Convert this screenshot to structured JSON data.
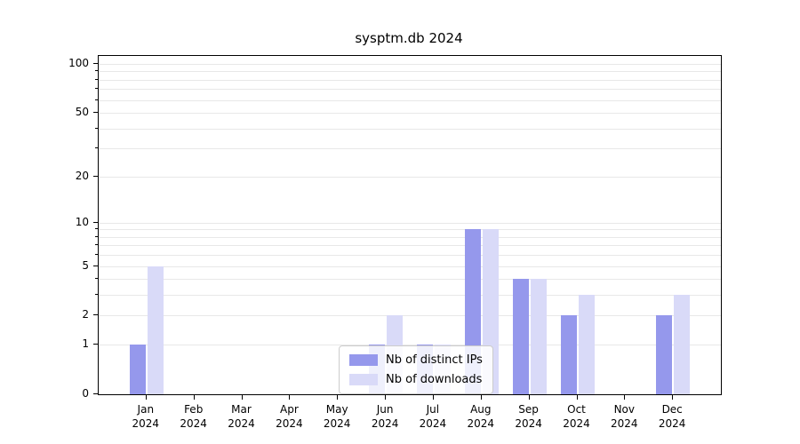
{
  "title": "sysptm.db 2024",
  "chart_data": {
    "type": "bar",
    "title": "sysptm.db 2024",
    "categories": [
      "Jan",
      "Feb",
      "Mar",
      "Apr",
      "May",
      "Jun",
      "Jul",
      "Aug",
      "Sep",
      "Oct",
      "Nov",
      "Dec"
    ],
    "year": "2024",
    "series": [
      {
        "name": "Nb of distinct IPs",
        "color": "#9598ec",
        "values": [
          1,
          0,
          0,
          0,
          0,
          1,
          1,
          9,
          4,
          2,
          0,
          2
        ]
      },
      {
        "name": "Nb of downloads",
        "color": "#d9daf8",
        "values": [
          5,
          0,
          0,
          0,
          0,
          2,
          1,
          9,
          4,
          3,
          0,
          3
        ]
      }
    ],
    "y_ticks": [
      0,
      1,
      2,
      5,
      10,
      20,
      50,
      100
    ],
    "scale": "log1p",
    "ylim": [
      0,
      100
    ],
    "grid": true,
    "legend_position": "lower center",
    "colors": {
      "grid": "#e8e8e8",
      "axis": "#000000",
      "legend_border": "#cccccc"
    }
  }
}
